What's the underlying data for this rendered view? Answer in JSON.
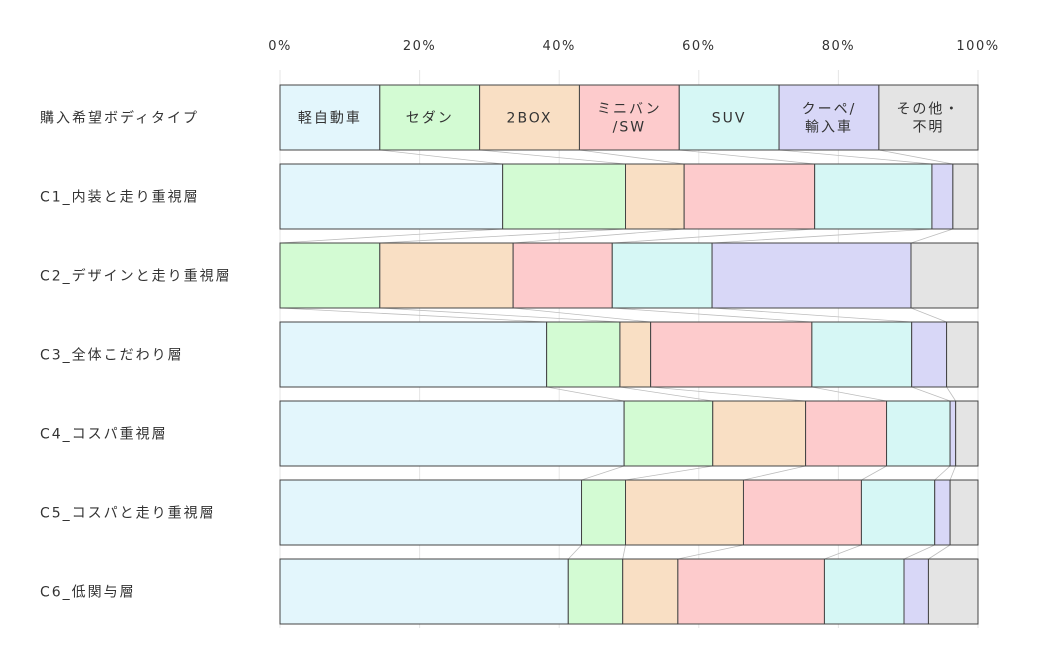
{
  "chart_data": {
    "type": "bar",
    "stacked": "percent",
    "orientation": "horizontal",
    "xlim": [
      0,
      100
    ],
    "x_ticks": [
      "0%",
      "20%",
      "40%",
      "60%",
      "80%",
      "100%"
    ],
    "grid": true,
    "legend": "none",
    "categories": [
      "購入希望ボディタイプ",
      "C1_内装と走り重視層",
      "C2_デザインと走り重視層",
      "C3_全体こだわり層",
      "C4_コスパ重視層",
      "C5_コスパと走り重視層",
      "C6_低関与層"
    ],
    "header_labels": [
      [
        "軽自動車"
      ],
      [
        "セダン"
      ],
      [
        "2BOX"
      ],
      [
        "ミニバン",
        "/SW"
      ],
      [
        "SUV"
      ],
      [
        "クーペ/",
        "輸入車"
      ],
      [
        "その他・",
        "不明"
      ]
    ],
    "series": [
      {
        "color": "#e3f6fc",
        "values": [
          14.3,
          31.9,
          0.0,
          38.2,
          49.3,
          43.2,
          41.3
        ]
      },
      {
        "color": "#d3fbd3",
        "values": [
          14.3,
          17.6,
          14.3,
          10.5,
          12.7,
          6.3,
          7.8
        ]
      },
      {
        "color": "#f9dfc4",
        "values": [
          14.3,
          8.4,
          19.1,
          4.4,
          13.3,
          16.9,
          7.9
        ]
      },
      {
        "color": "#fdcbcc",
        "values": [
          14.3,
          18.7,
          14.2,
          23.1,
          11.6,
          16.9,
          21.0
        ]
      },
      {
        "color": "#d6f7f5",
        "values": [
          14.3,
          16.8,
          14.3,
          14.3,
          9.1,
          10.5,
          11.4
        ]
      },
      {
        "color": "#d8d7f7",
        "values": [
          14.3,
          3.0,
          28.5,
          5.0,
          0.8,
          2.2,
          3.5
        ]
      },
      {
        "color": "#e4e4e4",
        "values": [
          14.2,
          3.6,
          9.6,
          4.5,
          3.2,
          4.0,
          7.1
        ]
      }
    ]
  }
}
